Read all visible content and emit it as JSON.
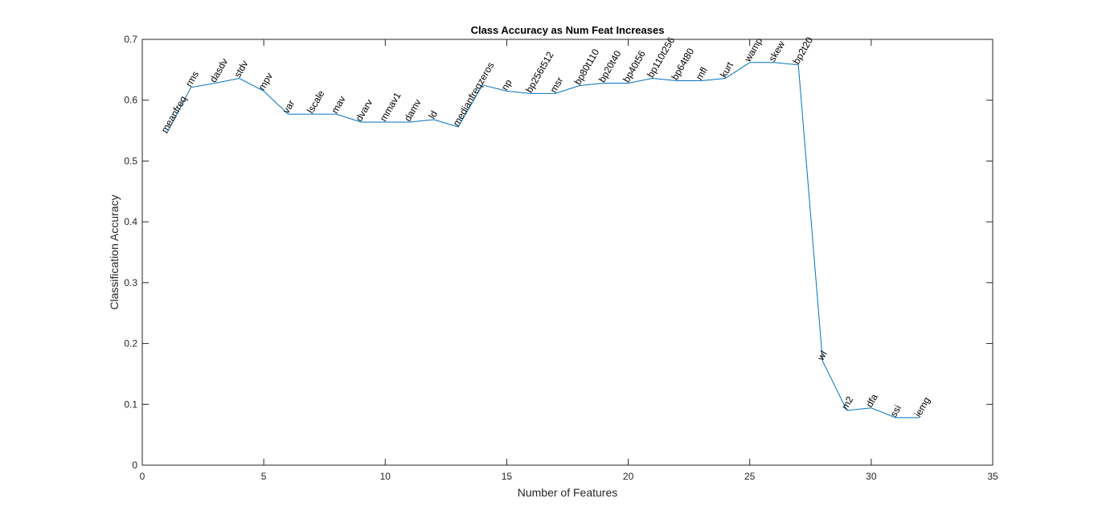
{
  "chart_data": {
    "type": "line",
    "title": "Class Accuracy as Num Feat Increases",
    "xlabel": "Number of Features",
    "ylabel": "Classification Accuracy",
    "xlim": [
      0,
      35
    ],
    "ylim": [
      0,
      0.7
    ],
    "xticks": [
      "0",
      "5",
      "10",
      "15",
      "20",
      "25",
      "30",
      "35"
    ],
    "yticks": [
      "0",
      "0.1",
      "0.2",
      "0.3",
      "0.4",
      "0.5",
      "0.6",
      "0.7"
    ],
    "grid": false,
    "series_color": "#0072bd",
    "series": [
      {
        "x": [
          1,
          2,
          3,
          4,
          5,
          6,
          7,
          8,
          9,
          10,
          11,
          12,
          13,
          14,
          15,
          16,
          17,
          18,
          19,
          20,
          21,
          22,
          23,
          24,
          25,
          26,
          27,
          28,
          29,
          30,
          31,
          32
        ],
        "values": [
          0.545,
          0.621,
          0.628,
          0.636,
          0.615,
          0.577,
          0.577,
          0.577,
          0.564,
          0.564,
          0.564,
          0.568,
          0.556,
          0.625,
          0.615,
          0.611,
          0.611,
          0.624,
          0.628,
          0.628,
          0.636,
          0.632,
          0.632,
          0.636,
          0.662,
          0.662,
          0.658,
          0.171,
          0.09,
          0.094,
          0.078,
          0.078
        ],
        "labels": [
          "meanfreq",
          "rms",
          "dasdv",
          "stdv",
          "mpv",
          "var",
          "lscale",
          "mav",
          "dvarv",
          "mmav1",
          "damv",
          "ld",
          "medianfreq",
          "zeros",
          "np",
          "bp256t512",
          "msr",
          "bp80t110",
          "bp20t40",
          "bp40t56",
          "bp110t256",
          "bp64t80",
          "mfl",
          "kurt",
          "wamp",
          "skew",
          "bp2t20",
          "wl",
          "m2",
          "dfa",
          "ssi",
          "iemg"
        ]
      }
    ]
  }
}
